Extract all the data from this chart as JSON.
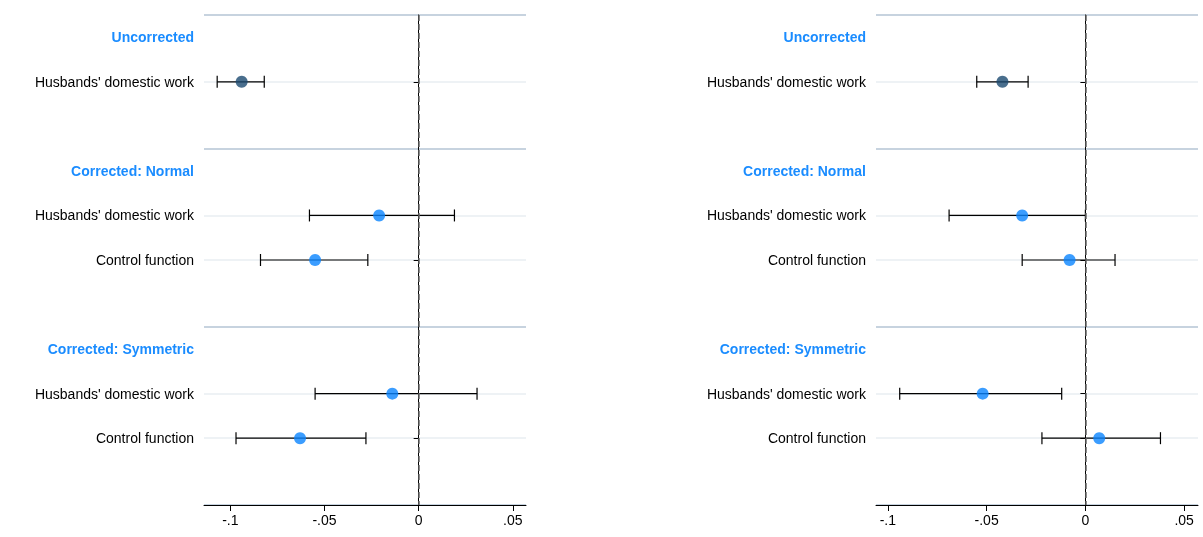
{
  "chart_data": [
    {
      "type": "scatter",
      "orientation": "horizontal",
      "marker": "circle",
      "grid": "y",
      "categories": [
        "Uncorrected",
        "Husbands' domestic work",
        null,
        "Corrected: Normal",
        "Husbands' domestic work",
        "Control function",
        null,
        "Corrected: Symmetric",
        "Husbands' domestic work",
        "Control function",
        null
      ],
      "series": [
        {
          "color": "#1c4a70",
          "values": [
            null,
            -0.094,
            null,
            null,
            null,
            null,
            null,
            null,
            null,
            null,
            null
          ],
          "errors": [
            null,
            [
              -0.107,
              -0.082
            ],
            null,
            null,
            null,
            null,
            null,
            null,
            null,
            null,
            null
          ]
        },
        {
          "color": "#0a84ff",
          "values": [
            null,
            null,
            null,
            null,
            -0.021,
            null,
            null,
            null,
            -0.014,
            null,
            null
          ],
          "errors": [
            null,
            null,
            null,
            null,
            [
              -0.058,
              0.019
            ],
            null,
            null,
            null,
            [
              -0.055,
              0.031
            ],
            null,
            null
          ]
        },
        {
          "color": "#0a84ff",
          "values": [
            null,
            null,
            null,
            null,
            null,
            -0.055,
            null,
            null,
            null,
            -0.063,
            null
          ],
          "errors": [
            null,
            null,
            null,
            null,
            null,
            [
              -0.084,
              -0.027
            ],
            null,
            null,
            null,
            [
              -0.097,
              -0.028
            ],
            null
          ]
        }
      ],
      "xlim": [
        -0.114,
        0.057
      ],
      "xticks": [
        {
          "value": -0.1,
          "label": "-.1"
        },
        {
          "value": -0.05,
          "label": "-.05"
        },
        0,
        {
          "value": 0.05,
          "label": ".05"
        }
      ],
      "ref_lines": [
        {
          "axis": "x",
          "value": 0,
          "color": "#666666",
          "line_style": "dashed"
        }
      ]
    },
    {
      "type": "scatter",
      "orientation": "horizontal",
      "marker": "circle",
      "grid": "y",
      "categories": [
        "Uncorrected",
        "Husbands' domestic work",
        null,
        "Corrected: Normal",
        "Husbands' domestic work",
        "Control function",
        null,
        "Corrected: Symmetric",
        "Husbands' domestic work",
        "Control function",
        null
      ],
      "series": [
        {
          "color": "#1c4a70",
          "values": [
            null,
            -0.042,
            null,
            null,
            null,
            null,
            null,
            null,
            null,
            null,
            null
          ],
          "errors": [
            null,
            [
              -0.055,
              -0.029
            ],
            null,
            null,
            null,
            null,
            null,
            null,
            null,
            null,
            null
          ]
        },
        {
          "color": "#0a84ff",
          "values": [
            null,
            null,
            null,
            null,
            -0.032,
            null,
            null,
            null,
            -0.052,
            null,
            null
          ],
          "errors": [
            null,
            null,
            null,
            null,
            [
              -0.069,
              0.0
            ],
            null,
            null,
            null,
            [
              -0.094,
              -0.012
            ],
            null,
            null
          ]
        },
        {
          "color": "#0a84ff",
          "values": [
            null,
            null,
            null,
            null,
            null,
            -0.008,
            null,
            null,
            null,
            0.007,
            null
          ],
          "errors": [
            null,
            null,
            null,
            null,
            null,
            [
              -0.032,
              0.015
            ],
            null,
            null,
            null,
            [
              -0.022,
              0.038
            ],
            null
          ]
        }
      ],
      "xlim": [
        -0.106,
        0.057
      ],
      "xticks": [
        {
          "value": -0.1,
          "label": "-.1"
        },
        {
          "value": -0.05,
          "label": "-.05"
        },
        0,
        {
          "value": 0.05,
          "label": ".05"
        }
      ],
      "ref_lines": [
        {
          "axis": "x",
          "value": 0,
          "color": "#666666",
          "line_style": "dashed"
        }
      ]
    }
  ]
}
